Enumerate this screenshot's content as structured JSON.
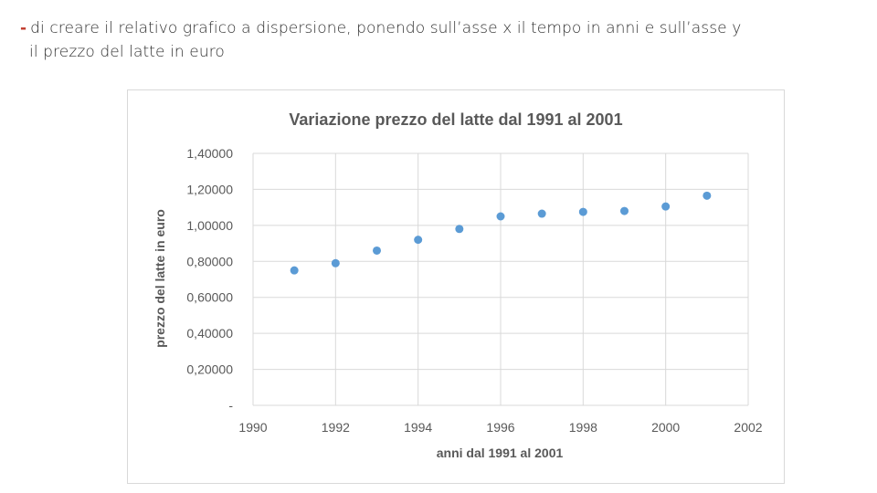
{
  "slide": {
    "line1_dash": "-",
    "line1": "di creare il relativo grafico a dispersione, ponendo sull’asse x  il tempo in anni  e sull’asse y",
    "line2": "il prezzo del latte in euro"
  },
  "chart_data": {
    "type": "scatter",
    "title": "Variazione prezzo del latte dal 1991 al 2001",
    "xlabel": "anni dal 1991 al 2001",
    "ylabel": "prezzo del latte in euro",
    "xlim": [
      1990,
      2002
    ],
    "ylim": [
      0,
      1.4
    ],
    "xticks": [
      1990,
      1992,
      1994,
      1996,
      1998,
      2000,
      2002
    ],
    "xtick_labels": [
      "1990",
      "1992",
      "1994",
      "1996",
      "1998",
      "2000",
      "2002"
    ],
    "yticks": [
      0,
      0.2,
      0.4,
      0.6,
      0.8,
      1.0,
      1.2,
      1.4
    ],
    "ytick_labels": [
      "-",
      "0,20000",
      "0,40000",
      "0,60000",
      "0,80000",
      "1,00000",
      "1,20000",
      "1,40000"
    ],
    "grid": true,
    "legend": "none",
    "marker_color": "#5b9bd5",
    "x": [
      1991,
      1992,
      1993,
      1994,
      1995,
      1996,
      1997,
      1998,
      1999,
      2000,
      2001
    ],
    "y": [
      0.75,
      0.79,
      0.86,
      0.92,
      0.98,
      1.05,
      1.065,
      1.075,
      1.08,
      1.105,
      1.165
    ]
  }
}
